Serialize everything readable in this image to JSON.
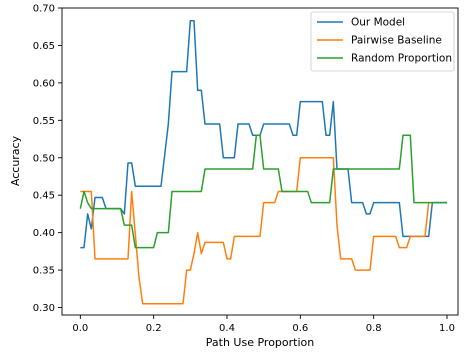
{
  "chart_data": {
    "type": "line",
    "title": "",
    "xlabel": "Path Use Proportion",
    "ylabel": "Accuracy",
    "xlim": [
      -0.05,
      1.03
    ],
    "ylim": [
      0.29,
      0.7
    ],
    "xticks": [
      0.0,
      0.2,
      0.4,
      0.6,
      0.8,
      1.0
    ],
    "xtick_labels": [
      "0.0",
      "0.2",
      "0.4",
      "0.6",
      "0.8",
      "1.0"
    ],
    "yticks": [
      0.3,
      0.35,
      0.4,
      0.45,
      0.5,
      0.55,
      0.6,
      0.65,
      0.7
    ],
    "ytick_labels": [
      "0.30",
      "0.35",
      "0.40",
      "0.45",
      "0.50",
      "0.55",
      "0.60",
      "0.65",
      "0.70"
    ],
    "grid": false,
    "legend": "top-right",
    "series": [
      {
        "name": "Our Model",
        "color": "#1f77b4",
        "points": [
          [
            0.0,
            0.38
          ],
          [
            0.01,
            0.38
          ],
          [
            0.02,
            0.425
          ],
          [
            0.03,
            0.405
          ],
          [
            0.04,
            0.447
          ],
          [
            0.06,
            0.447
          ],
          [
            0.07,
            0.432
          ],
          [
            0.11,
            0.432
          ],
          [
            0.12,
            0.425
          ],
          [
            0.13,
            0.493
          ],
          [
            0.14,
            0.493
          ],
          [
            0.15,
            0.462
          ],
          [
            0.22,
            0.462
          ],
          [
            0.24,
            0.545
          ],
          [
            0.25,
            0.615
          ],
          [
            0.29,
            0.615
          ],
          [
            0.3,
            0.683
          ],
          [
            0.31,
            0.683
          ],
          [
            0.32,
            0.59
          ],
          [
            0.33,
            0.59
          ],
          [
            0.34,
            0.545
          ],
          [
            0.38,
            0.545
          ],
          [
            0.39,
            0.5
          ],
          [
            0.42,
            0.5
          ],
          [
            0.43,
            0.545
          ],
          [
            0.46,
            0.545
          ],
          [
            0.47,
            0.53
          ],
          [
            0.49,
            0.53
          ],
          [
            0.5,
            0.545
          ],
          [
            0.57,
            0.545
          ],
          [
            0.58,
            0.53
          ],
          [
            0.59,
            0.53
          ],
          [
            0.6,
            0.575
          ],
          [
            0.66,
            0.575
          ],
          [
            0.67,
            0.53
          ],
          [
            0.68,
            0.53
          ],
          [
            0.69,
            0.575
          ],
          [
            0.7,
            0.485
          ],
          [
            0.73,
            0.485
          ],
          [
            0.74,
            0.44
          ],
          [
            0.77,
            0.44
          ],
          [
            0.78,
            0.425
          ],
          [
            0.79,
            0.425
          ],
          [
            0.8,
            0.44
          ],
          [
            0.87,
            0.44
          ],
          [
            0.88,
            0.395
          ],
          [
            0.95,
            0.395
          ],
          [
            0.96,
            0.44
          ],
          [
            1.0,
            0.44
          ]
        ]
      },
      {
        "name": "Pairwise Baseline",
        "color": "#ff7f0e",
        "points": [
          [
            0.0,
            0.455
          ],
          [
            0.03,
            0.455
          ],
          [
            0.04,
            0.365
          ],
          [
            0.13,
            0.365
          ],
          [
            0.14,
            0.455
          ],
          [
            0.16,
            0.34
          ],
          [
            0.17,
            0.305
          ],
          [
            0.28,
            0.305
          ],
          [
            0.29,
            0.35
          ],
          [
            0.3,
            0.35
          ],
          [
            0.31,
            0.372
          ],
          [
            0.32,
            0.4
          ],
          [
            0.33,
            0.372
          ],
          [
            0.34,
            0.387
          ],
          [
            0.39,
            0.387
          ],
          [
            0.4,
            0.365
          ],
          [
            0.41,
            0.365
          ],
          [
            0.42,
            0.395
          ],
          [
            0.49,
            0.395
          ],
          [
            0.5,
            0.44
          ],
          [
            0.53,
            0.44
          ],
          [
            0.54,
            0.455
          ],
          [
            0.59,
            0.455
          ],
          [
            0.6,
            0.5
          ],
          [
            0.69,
            0.5
          ],
          [
            0.7,
            0.41
          ],
          [
            0.71,
            0.365
          ],
          [
            0.74,
            0.365
          ],
          [
            0.75,
            0.35
          ],
          [
            0.79,
            0.35
          ],
          [
            0.8,
            0.395
          ],
          [
            0.86,
            0.395
          ],
          [
            0.87,
            0.38
          ],
          [
            0.89,
            0.38
          ],
          [
            0.9,
            0.395
          ],
          [
            0.94,
            0.395
          ],
          [
            0.95,
            0.44
          ]
        ]
      },
      {
        "name": "Random Proportion",
        "color": "#2ca02c",
        "points": [
          [
            0.0,
            0.432
          ],
          [
            0.01,
            0.455
          ],
          [
            0.02,
            0.44
          ],
          [
            0.03,
            0.432
          ],
          [
            0.11,
            0.432
          ],
          [
            0.12,
            0.41
          ],
          [
            0.14,
            0.41
          ],
          [
            0.15,
            0.38
          ],
          [
            0.2,
            0.38
          ],
          [
            0.21,
            0.4
          ],
          [
            0.24,
            0.4
          ],
          [
            0.25,
            0.455
          ],
          [
            0.33,
            0.455
          ],
          [
            0.34,
            0.485
          ],
          [
            0.47,
            0.485
          ],
          [
            0.48,
            0.53
          ],
          [
            0.49,
            0.53
          ],
          [
            0.5,
            0.485
          ],
          [
            0.54,
            0.485
          ],
          [
            0.55,
            0.455
          ],
          [
            0.62,
            0.455
          ],
          [
            0.63,
            0.44
          ],
          [
            0.68,
            0.44
          ],
          [
            0.69,
            0.485
          ],
          [
            0.87,
            0.485
          ],
          [
            0.88,
            0.53
          ],
          [
            0.9,
            0.53
          ],
          [
            0.91,
            0.44
          ],
          [
            1.0,
            0.44
          ]
        ]
      }
    ]
  }
}
